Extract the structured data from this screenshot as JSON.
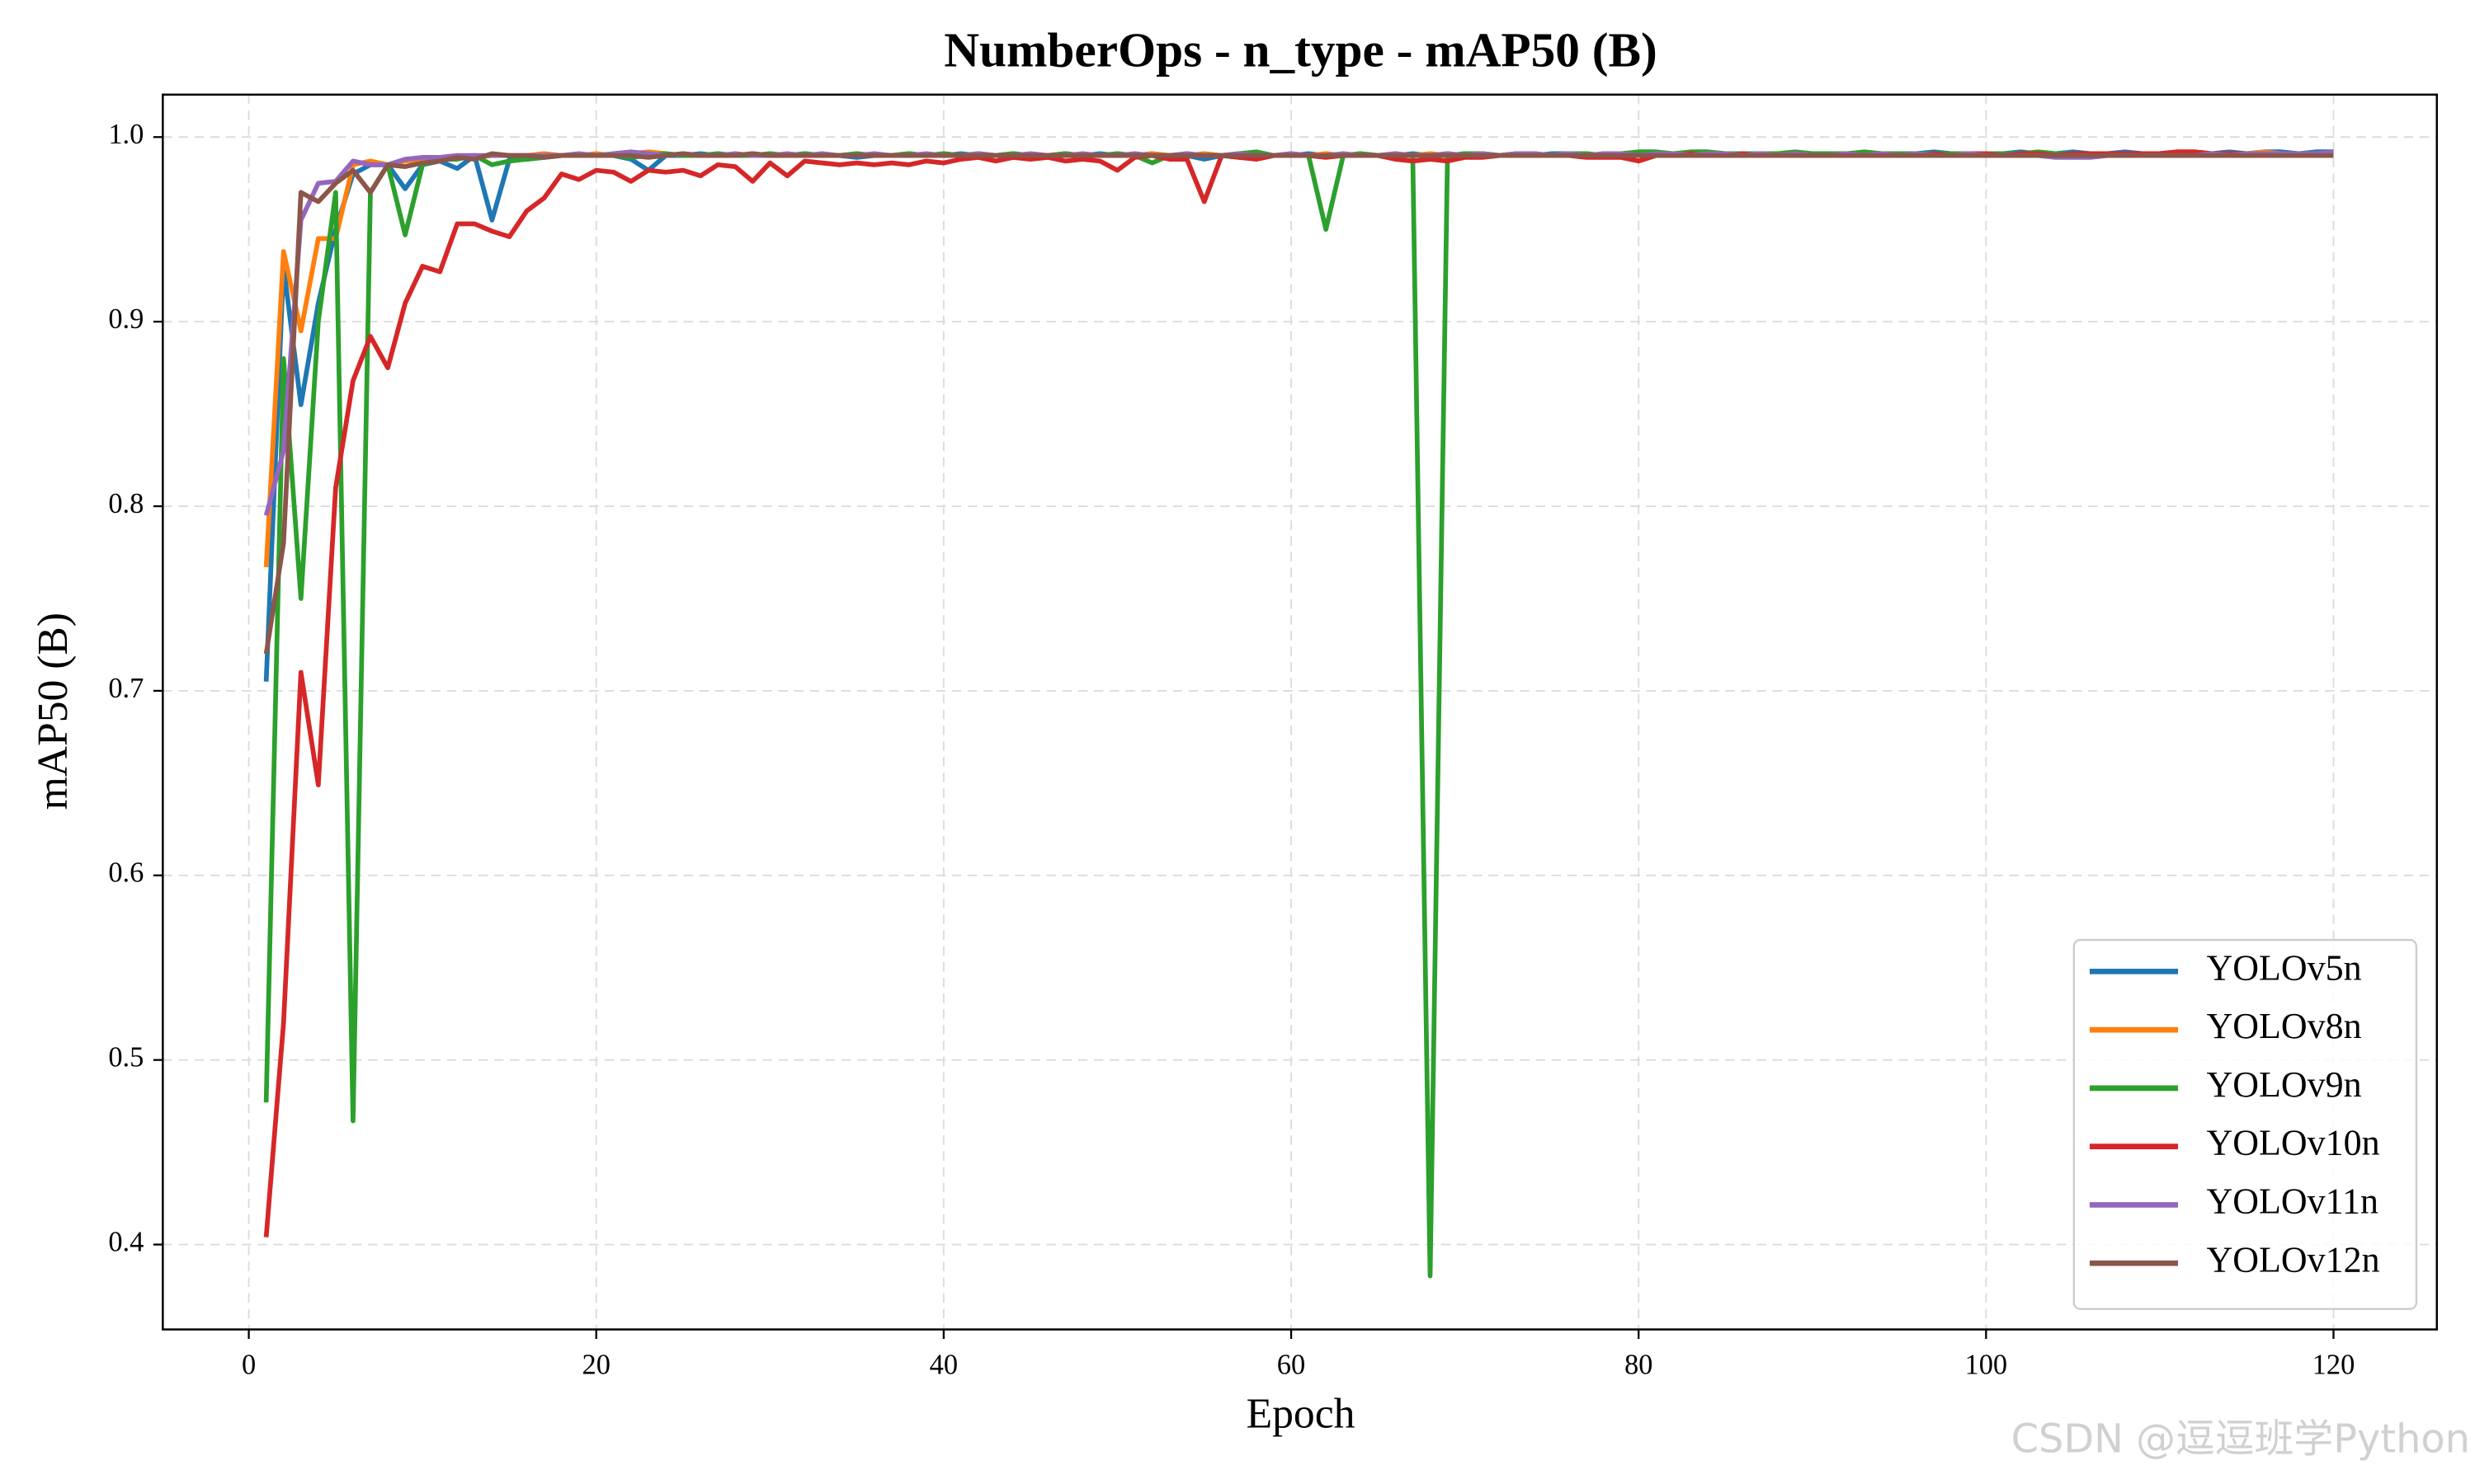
{
  "chart_data": {
    "type": "line",
    "title": "NumberOps - n_type - mAP50 (B)",
    "xlabel": "Epoch",
    "ylabel": "mAP50 (B)",
    "watermark": "CSDN @逗逗班学Python",
    "xlim": [
      -4.95,
      125.95
    ],
    "ylim": [
      0.354,
      1.023
    ],
    "xticks": [
      0,
      20,
      40,
      60,
      80,
      100,
      120
    ],
    "yticks": [
      0.4,
      0.5,
      0.6,
      0.7,
      0.8,
      0.9,
      {
        "value": 1,
        "label": "1.0"
      }
    ],
    "grid": true,
    "legend": "lower right",
    "x": [
      1,
      2,
      3,
      4,
      5,
      6,
      7,
      8,
      9,
      10,
      11,
      12,
      13,
      14,
      15,
      16,
      17,
      18,
      19,
      20,
      21,
      22,
      23,
      24,
      25,
      26,
      27,
      28,
      29,
      30,
      31,
      32,
      33,
      34,
      35,
      36,
      37,
      38,
      39,
      40,
      41,
      42,
      43,
      44,
      45,
      46,
      47,
      48,
      49,
      50,
      51,
      52,
      53,
      54,
      55,
      56,
      57,
      58,
      59,
      60,
      61,
      62,
      63,
      64,
      65,
      66,
      67,
      68,
      69,
      70,
      71,
      72,
      73,
      74,
      75,
      76,
      77,
      78,
      79,
      80,
      81,
      82,
      83,
      84,
      85,
      86,
      87,
      88,
      89,
      90,
      91,
      92,
      93,
      94,
      95,
      96,
      97,
      98,
      99,
      100,
      101,
      102,
      103,
      104,
      105,
      106,
      107,
      108,
      109,
      110,
      111,
      112,
      113,
      114,
      115,
      116,
      117,
      118,
      119,
      120
    ],
    "series": [
      {
        "name": "YOLOv5n",
        "color": "#1f77b4",
        "values": [
          0.705,
          0.93,
          0.855,
          0.91,
          0.95,
          0.98,
          0.985,
          0.985,
          0.972,
          0.985,
          0.987,
          0.983,
          0.99,
          0.955,
          0.988,
          0.988,
          0.989,
          0.99,
          0.99,
          0.99,
          0.99,
          0.988,
          0.982,
          0.99,
          0.99,
          0.991,
          0.99,
          0.99,
          0.991,
          0.99,
          0.99,
          0.991,
          0.99,
          0.99,
          0.989,
          0.99,
          0.99,
          0.991,
          0.99,
          0.99,
          0.991,
          0.99,
          0.99,
          0.991,
          0.99,
          0.99,
          0.991,
          0.99,
          0.991,
          0.99,
          0.99,
          0.991,
          0.99,
          0.99,
          0.988,
          0.99,
          0.989,
          0.991,
          0.99,
          0.99,
          0.991,
          0.99,
          0.99,
          0.991,
          0.99,
          0.99,
          0.991,
          0.99,
          0.991,
          0.99,
          0.991,
          0.99,
          0.991,
          0.99,
          0.991,
          0.991,
          0.99,
          0.991,
          0.991,
          0.99,
          0.991,
          0.991,
          0.99,
          0.991,
          0.991,
          0.99,
          0.991,
          0.991,
          0.991,
          0.99,
          0.991,
          0.991,
          0.991,
          0.99,
          0.991,
          0.991,
          0.992,
          0.991,
          0.991,
          0.991,
          0.991,
          0.992,
          0.991,
          0.991,
          0.992,
          0.991,
          0.991,
          0.992,
          0.991,
          0.991,
          0.992,
          0.991,
          0.991,
          0.992,
          0.991,
          0.992,
          0.992,
          0.991,
          0.992,
          0.992
        ]
      },
      {
        "name": "YOLOv8n",
        "color": "#ff7f0e",
        "values": [
          0.767,
          0.938,
          0.895,
          0.945,
          0.945,
          0.985,
          0.987,
          0.985,
          0.987,
          0.988,
          0.988,
          0.99,
          0.989,
          0.99,
          0.99,
          0.99,
          0.991,
          0.99,
          0.99,
          0.991,
          0.99,
          0.991,
          0.992,
          0.991,
          0.99,
          0.99,
          0.991,
          0.99,
          0.99,
          0.991,
          0.99,
          0.991,
          0.99,
          0.99,
          0.991,
          0.99,
          0.99,
          0.991,
          0.99,
          0.991,
          0.99,
          0.991,
          0.99,
          0.991,
          0.99,
          0.99,
          0.991,
          0.99,
          0.99,
          0.991,
          0.99,
          0.991,
          0.99,
          0.99,
          0.991,
          0.99,
          0.991,
          0.99,
          0.99,
          0.991,
          0.99,
          0.991,
          0.99,
          0.991,
          0.99,
          0.991,
          0.99,
          0.991,
          0.99,
          0.991,
          0.991,
          0.99,
          0.991,
          0.991,
          0.99,
          0.991,
          0.991,
          0.99,
          0.991,
          0.991,
          0.991,
          0.991,
          0.99,
          0.991,
          0.991,
          0.991,
          0.99,
          0.991,
          0.991,
          0.991,
          0.991,
          0.991,
          0.991,
          0.991,
          0.991,
          0.991,
          0.991,
          0.991,
          0.991,
          0.991,
          0.991,
          0.991,
          0.991,
          0.991,
          0.991,
          0.991,
          0.991,
          0.991,
          0.991,
          0.991,
          0.991,
          0.992,
          0.991,
          0.991,
          0.991,
          0.992,
          0.991,
          0.991,
          0.991,
          0.991
        ]
      },
      {
        "name": "YOLOv9n",
        "color": "#2ca02c",
        "values": [
          0.477,
          0.88,
          0.75,
          0.9,
          0.97,
          0.467,
          0.97,
          0.985,
          0.947,
          0.985,
          0.988,
          0.988,
          0.99,
          0.985,
          0.987,
          0.988,
          0.989,
          0.99,
          0.99,
          0.99,
          0.99,
          0.989,
          0.99,
          0.991,
          0.99,
          0.99,
          0.991,
          0.99,
          0.99,
          0.991,
          0.99,
          0.991,
          0.99,
          0.99,
          0.991,
          0.99,
          0.99,
          0.991,
          0.99,
          0.991,
          0.99,
          0.991,
          0.99,
          0.991,
          0.99,
          0.99,
          0.991,
          0.99,
          0.99,
          0.991,
          0.99,
          0.986,
          0.99,
          0.991,
          0.99,
          0.99,
          0.991,
          0.992,
          0.99,
          0.99,
          0.99,
          0.95,
          0.99,
          0.991,
          0.99,
          0.99,
          0.99,
          0.383,
          0.99,
          0.991,
          0.991,
          0.99,
          0.991,
          0.991,
          0.99,
          0.991,
          0.991,
          0.99,
          0.991,
          0.992,
          0.992,
          0.991,
          0.992,
          0.992,
          0.991,
          0.991,
          0.991,
          0.991,
          0.992,
          0.991,
          0.991,
          0.991,
          0.992,
          0.991,
          0.991,
          0.991,
          0.991,
          0.991,
          0.991,
          0.991,
          0.991,
          0.991,
          0.992,
          0.991,
          0.991,
          0.991,
          0.991,
          0.991,
          0.991,
          0.991,
          0.991,
          0.991,
          0.991,
          0.991,
          0.991,
          0.991,
          0.991,
          0.991,
          0.991,
          0.991
        ]
      },
      {
        "name": "YOLOv10n",
        "color": "#d62728",
        "values": [
          0.404,
          0.52,
          0.71,
          0.649,
          0.81,
          0.868,
          0.892,
          0.875,
          0.91,
          0.93,
          0.927,
          0.953,
          0.953,
          0.949,
          0.946,
          0.96,
          0.967,
          0.98,
          0.977,
          0.982,
          0.981,
          0.976,
          0.982,
          0.981,
          0.982,
          0.979,
          0.985,
          0.984,
          0.976,
          0.986,
          0.979,
          0.987,
          0.986,
          0.985,
          0.986,
          0.985,
          0.986,
          0.985,
          0.987,
          0.986,
          0.988,
          0.989,
          0.987,
          0.989,
          0.988,
          0.989,
          0.987,
          0.988,
          0.987,
          0.982,
          0.989,
          0.99,
          0.988,
          0.988,
          0.965,
          0.99,
          0.989,
          0.988,
          0.99,
          0.99,
          0.99,
          0.989,
          0.99,
          0.99,
          0.99,
          0.988,
          0.987,
          0.988,
          0.987,
          0.989,
          0.989,
          0.99,
          0.99,
          0.99,
          0.99,
          0.99,
          0.989,
          0.989,
          0.989,
          0.987,
          0.99,
          0.99,
          0.991,
          0.99,
          0.99,
          0.991,
          0.99,
          0.99,
          0.991,
          0.99,
          0.99,
          0.991,
          0.99,
          0.991,
          0.99,
          0.99,
          0.991,
          0.99,
          0.991,
          0.991,
          0.99,
          0.991,
          0.991,
          0.99,
          0.991,
          0.991,
          0.991,
          0.991,
          0.991,
          0.991,
          0.992,
          0.992,
          0.991,
          0.991,
          0.991,
          0.99,
          0.991,
          0.991,
          0.991,
          0.991
        ]
      },
      {
        "name": "YOLOv11n",
        "color": "#9467bd",
        "values": [
          0.795,
          0.83,
          0.955,
          0.975,
          0.976,
          0.987,
          0.985,
          0.985,
          0.988,
          0.989,
          0.989,
          0.99,
          0.99,
          0.99,
          0.99,
          0.99,
          0.99,
          0.99,
          0.991,
          0.99,
          0.991,
          0.992,
          0.991,
          0.99,
          0.991,
          0.99,
          0.99,
          0.991,
          0.99,
          0.99,
          0.991,
          0.99,
          0.991,
          0.99,
          0.99,
          0.991,
          0.99,
          0.99,
          0.991,
          0.99,
          0.99,
          0.991,
          0.99,
          0.99,
          0.991,
          0.99,
          0.99,
          0.991,
          0.99,
          0.99,
          0.991,
          0.99,
          0.99,
          0.991,
          0.99,
          0.99,
          0.991,
          0.99,
          0.99,
          0.991,
          0.99,
          0.99,
          0.991,
          0.99,
          0.99,
          0.991,
          0.99,
          0.99,
          0.991,
          0.99,
          0.991,
          0.99,
          0.991,
          0.991,
          0.99,
          0.991,
          0.99,
          0.991,
          0.991,
          0.99,
          0.991,
          0.991,
          0.99,
          0.991,
          0.991,
          0.99,
          0.991,
          0.99,
          0.991,
          0.99,
          0.99,
          0.991,
          0.99,
          0.991,
          0.99,
          0.991,
          0.99,
          0.99,
          0.991,
          0.99,
          0.99,
          0.99,
          0.99,
          0.989,
          0.989,
          0.989,
          0.99,
          0.99,
          0.99,
          0.99,
          0.99,
          0.99,
          0.991,
          0.99,
          0.991,
          0.991,
          0.991,
          0.991,
          0.991,
          0.992
        ]
      },
      {
        "name": "YOLOv12n",
        "color": "#8c564b",
        "values": [
          0.72,
          0.78,
          0.97,
          0.965,
          0.975,
          0.982,
          0.97,
          0.985,
          0.984,
          0.986,
          0.987,
          0.989,
          0.988,
          0.991,
          0.99,
          0.99,
          0.989,
          0.99,
          0.99,
          0.99,
          0.99,
          0.99,
          0.989,
          0.99,
          0.991,
          0.99,
          0.99,
          0.99,
          0.991,
          0.99,
          0.99,
          0.99,
          0.99,
          0.99,
          0.99,
          0.99,
          0.99,
          0.99,
          0.99,
          0.99,
          0.99,
          0.99,
          0.99,
          0.99,
          0.99,
          0.99,
          0.99,
          0.99,
          0.99,
          0.99,
          0.99,
          0.99,
          0.99,
          0.99,
          0.99,
          0.99,
          0.99,
          0.99,
          0.99,
          0.99,
          0.99,
          0.99,
          0.99,
          0.99,
          0.99,
          0.99,
          0.99,
          0.99,
          0.99,
          0.99,
          0.99,
          0.99,
          0.99,
          0.99,
          0.99,
          0.99,
          0.99,
          0.99,
          0.99,
          0.99,
          0.99,
          0.99,
          0.99,
          0.99,
          0.99,
          0.99,
          0.99,
          0.99,
          0.99,
          0.99,
          0.99,
          0.99,
          0.99,
          0.99,
          0.99,
          0.99,
          0.99,
          0.99,
          0.99,
          0.99,
          0.99,
          0.99,
          0.99,
          0.99,
          0.99,
          0.99,
          0.99,
          0.99,
          0.99,
          0.99,
          0.99,
          0.99,
          0.99,
          0.99,
          0.99,
          0.99,
          0.99,
          0.99,
          0.99,
          0.99
        ]
      }
    ]
  }
}
